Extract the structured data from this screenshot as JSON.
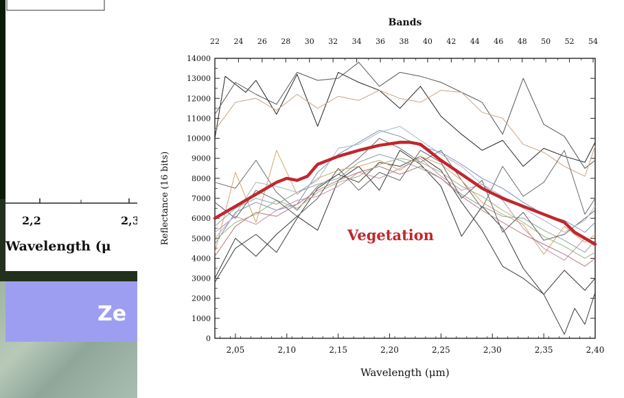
{
  "inset": {
    "tick_labels": [
      "2,2",
      "2,3"
    ],
    "xlabel": "Wavelength (μ"
  },
  "banner": {
    "text": "Ze"
  },
  "chart_data": {
    "type": "line",
    "title": "",
    "top_axis_label": "Bands",
    "top_ticks": [
      22,
      24,
      26,
      28,
      30,
      32,
      34,
      36,
      38,
      40,
      42,
      44,
      46,
      48,
      50,
      52,
      54
    ],
    "xlabel": "Wavelength (μm)",
    "ylabel": "Reflectance (16 bits)",
    "xlim": [
      2.03,
      2.4
    ],
    "ylim": [
      0,
      14000
    ],
    "x_ticks": [
      "2,05",
      "2,10",
      "2,15",
      "2,20",
      "2,25",
      "2,30",
      "2,35",
      "2,40"
    ],
    "y_ticks": [
      0,
      1000,
      2000,
      3000,
      4000,
      5000,
      6000,
      7000,
      8000,
      9000,
      10000,
      11000,
      12000,
      13000,
      14000
    ],
    "annotation": "Vegetation",
    "highlight_color": "#c0272d",
    "highlight_series": {
      "name": "Vegetation",
      "x": [
        2.03,
        2.05,
        2.07,
        2.09,
        2.1,
        2.11,
        2.12,
        2.13,
        2.15,
        2.17,
        2.19,
        2.21,
        2.22,
        2.23,
        2.25,
        2.27,
        2.29,
        2.31,
        2.33,
        2.35,
        2.37,
        2.38,
        2.4
      ],
      "y": [
        6000,
        6600,
        7200,
        7800,
        8000,
        7900,
        8100,
        8700,
        9100,
        9400,
        9650,
        9800,
        9800,
        9700,
        8900,
        8200,
        7500,
        7000,
        6600,
        6200,
        5800,
        5300,
        4700
      ]
    },
    "background_series": [
      {
        "color": "#222222",
        "x": [
          2.03,
          2.04,
          2.06,
          2.07,
          2.09,
          2.11,
          2.13,
          2.15,
          2.17,
          2.19,
          2.21,
          2.23,
          2.25,
          2.27,
          2.29,
          2.31,
          2.33,
          2.35,
          2.37,
          2.39,
          2.4
        ],
        "y": [
          10000,
          13100,
          12300,
          12900,
          11200,
          13200,
          10600,
          13300,
          12800,
          12400,
          11500,
          12600,
          11100,
          10200,
          9400,
          9900,
          8600,
          9500,
          9100,
          8800,
          9800
        ]
      },
      {
        "color": "#555555",
        "x": [
          2.03,
          2.05,
          2.07,
          2.09,
          2.11,
          2.13,
          2.15,
          2.17,
          2.19,
          2.21,
          2.23,
          2.25,
          2.27,
          2.29,
          2.31,
          2.33,
          2.35,
          2.37,
          2.39,
          2.4
        ],
        "y": [
          11200,
          12800,
          12200,
          11700,
          13300,
          12900,
          13000,
          13800,
          12600,
          13300,
          13100,
          12800,
          12300,
          11800,
          10200,
          13000,
          10700,
          10100,
          8500,
          8900
        ]
      },
      {
        "color": "#c9a383",
        "x": [
          2.03,
          2.05,
          2.07,
          2.09,
          2.11,
          2.13,
          2.15,
          2.17,
          2.19,
          2.21,
          2.23,
          2.25,
          2.27,
          2.29,
          2.31,
          2.33,
          2.35,
          2.37,
          2.39,
          2.4
        ],
        "y": [
          10400,
          11800,
          12000,
          11400,
          12200,
          11500,
          12100,
          11900,
          12400,
          12000,
          11800,
          12400,
          12300,
          11300,
          11000,
          9700,
          9300,
          8600,
          8100,
          9600
        ]
      },
      {
        "color": "#333333",
        "x": [
          2.03,
          2.05,
          2.07,
          2.09,
          2.11,
          2.13,
          2.15,
          2.17,
          2.19,
          2.21,
          2.23,
          2.25,
          2.27,
          2.29,
          2.31,
          2.33,
          2.35,
          2.37,
          2.39,
          2.4
        ],
        "y": [
          3000,
          5000,
          4100,
          5200,
          6100,
          5400,
          7900,
          8600,
          7400,
          9400,
          8700,
          7600,
          5100,
          6600,
          5500,
          3500,
          2200,
          3400,
          2400,
          3000
        ]
      },
      {
        "color": "#3a3a3a",
        "x": [
          2.03,
          2.05,
          2.07,
          2.09,
          2.11,
          2.13,
          2.15,
          2.17,
          2.19,
          2.21,
          2.23,
          2.25,
          2.27,
          2.29,
          2.31,
          2.33,
          2.35,
          2.37,
          2.38,
          2.39,
          2.4
        ],
        "y": [
          2800,
          4500,
          5200,
          4300,
          6000,
          7500,
          8200,
          7800,
          8800,
          8600,
          9100,
          8400,
          6800,
          5400,
          3600,
          3000,
          2200,
          200,
          1500,
          700,
          2300
        ]
      },
      {
        "color": "#6b6b6b",
        "x": [
          2.03,
          2.05,
          2.07,
          2.09,
          2.11,
          2.13,
          2.15,
          2.17,
          2.19,
          2.21,
          2.23,
          2.25,
          2.27,
          2.29,
          2.31,
          2.33,
          2.35,
          2.37,
          2.39,
          2.4
        ],
        "y": [
          7800,
          7500,
          8900,
          7300,
          6400,
          7600,
          8200,
          9000,
          10000,
          9500,
          8800,
          9400,
          7900,
          6500,
          8600,
          7100,
          7800,
          9400,
          6200,
          7000
        ]
      },
      {
        "color": "#7a8fb5",
        "x": [
          2.03,
          2.05,
          2.07,
          2.09,
          2.11,
          2.13,
          2.15,
          2.17,
          2.19,
          2.21,
          2.23,
          2.25,
          2.27,
          2.29,
          2.31,
          2.33,
          2.35,
          2.37,
          2.39,
          2.4
        ],
        "y": [
          4700,
          6300,
          6800,
          6400,
          6700,
          8300,
          9200,
          9800,
          10400,
          10100,
          9600,
          9300,
          8700,
          8000,
          7500,
          6800,
          6200,
          5900,
          5300,
          5800
        ]
      },
      {
        "color": "#d7a36a",
        "x": [
          2.03,
          2.05,
          2.07,
          2.09,
          2.11,
          2.13,
          2.15,
          2.17,
          2.19,
          2.21,
          2.23,
          2.25,
          2.27,
          2.29,
          2.31,
          2.33,
          2.35,
          2.37,
          2.39,
          2.4
        ],
        "y": [
          4300,
          8300,
          5800,
          9400,
          7200,
          8000,
          8400,
          8600,
          8900,
          8400,
          9100,
          8700,
          7900,
          6800,
          6200,
          5700,
          4200,
          5600,
          4800,
          5200
        ]
      },
      {
        "color": "#9cb27a",
        "x": [
          2.03,
          2.05,
          2.07,
          2.09,
          2.11,
          2.13,
          2.15,
          2.17,
          2.19,
          2.21,
          2.23,
          2.25,
          2.27,
          2.29,
          2.31,
          2.33,
          2.35,
          2.37,
          2.39,
          2.4
        ],
        "y": [
          4900,
          5800,
          6200,
          6900,
          6500,
          7300,
          7800,
          8100,
          8700,
          9000,
          8800,
          8300,
          7600,
          7100,
          6400,
          5800,
          5100,
          4600,
          4000,
          4300
        ]
      },
      {
        "color": "#c48fae",
        "x": [
          2.03,
          2.05,
          2.07,
          2.09,
          2.11,
          2.13,
          2.15,
          2.17,
          2.19,
          2.21,
          2.23,
          2.25,
          2.27,
          2.29,
          2.31,
          2.33,
          2.35,
          2.37,
          2.39,
          2.4
        ],
        "y": [
          5300,
          6100,
          5700,
          6400,
          6900,
          7100,
          7600,
          8300,
          8000,
          8500,
          9000,
          8100,
          7400,
          7700,
          6900,
          5500,
          4500,
          3900,
          5000,
          4600
        ]
      },
      {
        "color": "#8aa4a0",
        "x": [
          2.03,
          2.05,
          2.07,
          2.09,
          2.11,
          2.13,
          2.15,
          2.17,
          2.19,
          2.21,
          2.23,
          2.25,
          2.27,
          2.29,
          2.31,
          2.33,
          2.35,
          2.37,
          2.39,
          2.4
        ],
        "y": [
          5600,
          6500,
          7000,
          6700,
          7300,
          7700,
          8000,
          8800,
          9200,
          8900,
          8500,
          8000,
          7200,
          6600,
          6100,
          6000,
          5400,
          4900,
          4300,
          4900
        ]
      },
      {
        "color": "#b7777f",
        "x": [
          2.03,
          2.05,
          2.07,
          2.09,
          2.11,
          2.13,
          2.15,
          2.17,
          2.19,
          2.21,
          2.23,
          2.25,
          2.27,
          2.29,
          2.31,
          2.33,
          2.35,
          2.37,
          2.39,
          2.4
        ],
        "y": [
          4100,
          5600,
          6300,
          6100,
          6700,
          7400,
          7900,
          8300,
          8600,
          8200,
          8600,
          8000,
          7100,
          6400,
          5800,
          5200,
          4700,
          4200,
          3600,
          4000
        ]
      },
      {
        "color": "#5f5f5f",
        "x": [
          2.03,
          2.05,
          2.07,
          2.09,
          2.11,
          2.13,
          2.15,
          2.17,
          2.19,
          2.21,
          2.23,
          2.25,
          2.27,
          2.29,
          2.31,
          2.33,
          2.35,
          2.37,
          2.39,
          2.4
        ],
        "y": [
          6800,
          6000,
          7400,
          6900,
          6100,
          7000,
          8500,
          7400,
          8300,
          7900,
          9400,
          8800,
          7000,
          7900,
          5300,
          6300,
          4900,
          5200,
          6000,
          6400
        ]
      },
      {
        "color": "#a7b3c8",
        "x": [
          2.03,
          2.05,
          2.07,
          2.09,
          2.11,
          2.13,
          2.15,
          2.17,
          2.19,
          2.21,
          2.23,
          2.25,
          2.27,
          2.29,
          2.31,
          2.33,
          2.35,
          2.37,
          2.39,
          2.4
        ],
        "y": [
          5000,
          6200,
          7800,
          7600,
          7300,
          7900,
          9500,
          9700,
          10300,
          10600,
          9900,
          9200,
          8600,
          7700,
          7100,
          6500,
          5900,
          5300,
          5900,
          6600
        ]
      }
    ]
  }
}
